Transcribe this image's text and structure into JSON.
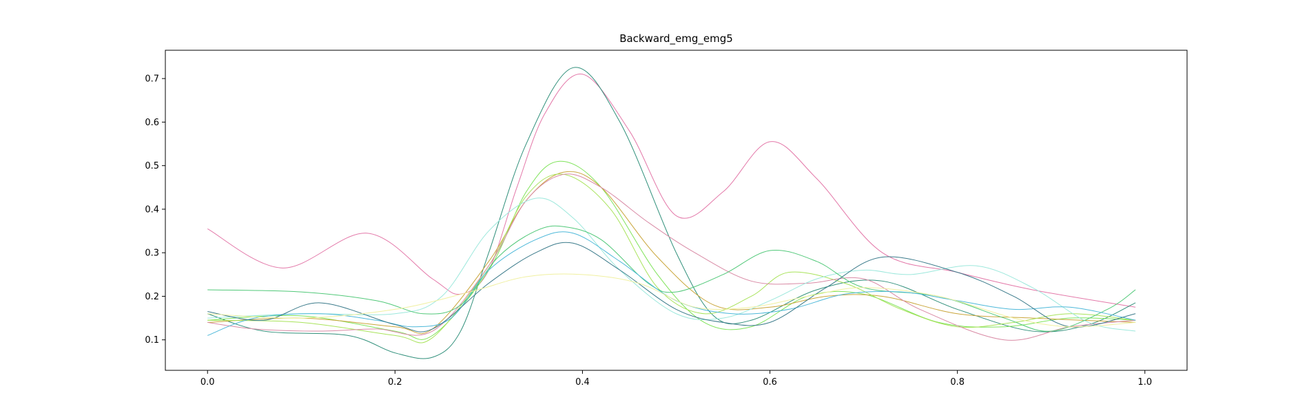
{
  "chart_data": {
    "type": "line",
    "title": "Backward_emg_emg5",
    "xlabel": "",
    "ylabel": "",
    "xlim": [
      -0.045,
      1.045
    ],
    "ylim": [
      0.03,
      0.765
    ],
    "x_ticks": [
      0.0,
      0.2,
      0.4,
      0.6,
      0.8,
      1.0
    ],
    "x_tick_labels": [
      "0.0",
      "0.2",
      "0.4",
      "0.6",
      "0.8",
      "1.0"
    ],
    "y_ticks": [
      0.1,
      0.2,
      0.3,
      0.4,
      0.5,
      0.6,
      0.7
    ],
    "y_tick_labels": [
      "0.1",
      "0.2",
      "0.3",
      "0.4",
      "0.5",
      "0.6",
      "0.7"
    ],
    "grid": false,
    "legend": "none",
    "series": [
      {
        "color": "#e377a8",
        "points": [
          [
            0.0,
            0.355
          ],
          [
            0.08,
            0.265
          ],
          [
            0.17,
            0.345
          ],
          [
            0.24,
            0.24
          ],
          [
            0.27,
            0.205
          ],
          [
            0.3,
            0.26
          ],
          [
            0.33,
            0.45
          ],
          [
            0.36,
            0.62
          ],
          [
            0.4,
            0.71
          ],
          [
            0.45,
            0.58
          ],
          [
            0.5,
            0.385
          ],
          [
            0.55,
            0.44
          ],
          [
            0.6,
            0.555
          ],
          [
            0.65,
            0.47
          ],
          [
            0.72,
            0.3
          ],
          [
            0.8,
            0.255
          ],
          [
            0.88,
            0.215
          ],
          [
            0.99,
            0.175
          ]
        ]
      },
      {
        "color": "#2f8f7a",
        "points": [
          [
            0.0,
            0.16
          ],
          [
            0.06,
            0.12
          ],
          [
            0.15,
            0.11
          ],
          [
            0.2,
            0.07
          ],
          [
            0.24,
            0.06
          ],
          [
            0.27,
            0.12
          ],
          [
            0.3,
            0.3
          ],
          [
            0.34,
            0.55
          ],
          [
            0.39,
            0.725
          ],
          [
            0.44,
            0.6
          ],
          [
            0.5,
            0.3
          ],
          [
            0.54,
            0.155
          ],
          [
            0.58,
            0.145
          ],
          [
            0.65,
            0.215
          ],
          [
            0.72,
            0.235
          ],
          [
            0.8,
            0.17
          ],
          [
            0.88,
            0.12
          ],
          [
            0.94,
            0.135
          ],
          [
            0.99,
            0.185
          ]
        ]
      },
      {
        "color": "#7fe35a",
        "points": [
          [
            0.0,
            0.145
          ],
          [
            0.1,
            0.155
          ],
          [
            0.2,
            0.12
          ],
          [
            0.24,
            0.11
          ],
          [
            0.3,
            0.26
          ],
          [
            0.34,
            0.44
          ],
          [
            0.375,
            0.51
          ],
          [
            0.42,
            0.45
          ],
          [
            0.48,
            0.25
          ],
          [
            0.53,
            0.14
          ],
          [
            0.58,
            0.13
          ],
          [
            0.64,
            0.2
          ],
          [
            0.7,
            0.205
          ],
          [
            0.78,
            0.14
          ],
          [
            0.85,
            0.13
          ],
          [
            0.92,
            0.15
          ],
          [
            0.99,
            0.145
          ]
        ]
      },
      {
        "color": "#c9a53a",
        "points": [
          [
            0.0,
            0.14
          ],
          [
            0.1,
            0.15
          ],
          [
            0.2,
            0.13
          ],
          [
            0.24,
            0.125
          ],
          [
            0.3,
            0.28
          ],
          [
            0.34,
            0.42
          ],
          [
            0.38,
            0.485
          ],
          [
            0.42,
            0.45
          ],
          [
            0.48,
            0.29
          ],
          [
            0.54,
            0.18
          ],
          [
            0.6,
            0.175
          ],
          [
            0.66,
            0.2
          ],
          [
            0.72,
            0.2
          ],
          [
            0.8,
            0.16
          ],
          [
            0.88,
            0.15
          ],
          [
            0.99,
            0.14
          ]
        ]
      },
      {
        "color": "#a8e35a",
        "points": [
          [
            0.0,
            0.145
          ],
          [
            0.1,
            0.14
          ],
          [
            0.2,
            0.11
          ],
          [
            0.24,
            0.105
          ],
          [
            0.3,
            0.27
          ],
          [
            0.34,
            0.43
          ],
          [
            0.38,
            0.48
          ],
          [
            0.43,
            0.4
          ],
          [
            0.48,
            0.22
          ],
          [
            0.53,
            0.16
          ],
          [
            0.58,
            0.2
          ],
          [
            0.62,
            0.255
          ],
          [
            0.68,
            0.23
          ],
          [
            0.74,
            0.17
          ],
          [
            0.8,
            0.13
          ],
          [
            0.86,
            0.14
          ],
          [
            0.92,
            0.16
          ],
          [
            0.99,
            0.145
          ]
        ]
      },
      {
        "color": "#d98aa5",
        "points": [
          [
            0.0,
            0.14
          ],
          [
            0.05,
            0.125
          ],
          [
            0.12,
            0.12
          ],
          [
            0.18,
            0.125
          ],
          [
            0.24,
            0.12
          ],
          [
            0.3,
            0.27
          ],
          [
            0.34,
            0.42
          ],
          [
            0.38,
            0.48
          ],
          [
            0.42,
            0.45
          ],
          [
            0.47,
            0.37
          ],
          [
            0.52,
            0.3
          ],
          [
            0.58,
            0.235
          ],
          [
            0.64,
            0.23
          ],
          [
            0.7,
            0.24
          ],
          [
            0.76,
            0.17
          ],
          [
            0.85,
            0.1
          ],
          [
            0.92,
            0.13
          ],
          [
            0.99,
            0.145
          ]
        ]
      },
      {
        "color": "#9ce8dc",
        "points": [
          [
            0.0,
            0.15
          ],
          [
            0.1,
            0.16
          ],
          [
            0.2,
            0.16
          ],
          [
            0.25,
            0.2
          ],
          [
            0.3,
            0.35
          ],
          [
            0.35,
            0.425
          ],
          [
            0.39,
            0.38
          ],
          [
            0.44,
            0.26
          ],
          [
            0.5,
            0.16
          ],
          [
            0.55,
            0.15
          ],
          [
            0.6,
            0.19
          ],
          [
            0.65,
            0.24
          ],
          [
            0.7,
            0.26
          ],
          [
            0.75,
            0.25
          ],
          [
            0.82,
            0.27
          ],
          [
            0.88,
            0.22
          ],
          [
            0.94,
            0.14
          ],
          [
            0.99,
            0.12
          ]
        ]
      },
      {
        "color": "#50c878",
        "points": [
          [
            0.0,
            0.215
          ],
          [
            0.1,
            0.21
          ],
          [
            0.18,
            0.19
          ],
          [
            0.23,
            0.16
          ],
          [
            0.27,
            0.18
          ],
          [
            0.31,
            0.29
          ],
          [
            0.35,
            0.35
          ],
          [
            0.38,
            0.36
          ],
          [
            0.42,
            0.33
          ],
          [
            0.47,
            0.23
          ],
          [
            0.5,
            0.21
          ],
          [
            0.55,
            0.25
          ],
          [
            0.6,
            0.305
          ],
          [
            0.65,
            0.28
          ],
          [
            0.7,
            0.22
          ],
          [
            0.78,
            0.2
          ],
          [
            0.85,
            0.15
          ],
          [
            0.9,
            0.12
          ],
          [
            0.96,
            0.17
          ],
          [
            0.99,
            0.215
          ]
        ]
      },
      {
        "color": "#4db8d9",
        "points": [
          [
            0.0,
            0.11
          ],
          [
            0.05,
            0.15
          ],
          [
            0.12,
            0.16
          ],
          [
            0.18,
            0.145
          ],
          [
            0.22,
            0.13
          ],
          [
            0.26,
            0.15
          ],
          [
            0.3,
            0.26
          ],
          [
            0.35,
            0.33
          ],
          [
            0.39,
            0.345
          ],
          [
            0.44,
            0.28
          ],
          [
            0.5,
            0.19
          ],
          [
            0.56,
            0.16
          ],
          [
            0.62,
            0.17
          ],
          [
            0.68,
            0.205
          ],
          [
            0.74,
            0.21
          ],
          [
            0.8,
            0.19
          ],
          [
            0.86,
            0.17
          ],
          [
            0.92,
            0.175
          ],
          [
            0.99,
            0.145
          ]
        ]
      },
      {
        "color": "#3a7a8a",
        "points": [
          [
            0.0,
            0.165
          ],
          [
            0.06,
            0.145
          ],
          [
            0.12,
            0.185
          ],
          [
            0.2,
            0.135
          ],
          [
            0.24,
            0.125
          ],
          [
            0.3,
            0.23
          ],
          [
            0.35,
            0.3
          ],
          [
            0.39,
            0.322
          ],
          [
            0.44,
            0.26
          ],
          [
            0.5,
            0.17
          ],
          [
            0.55,
            0.14
          ],
          [
            0.6,
            0.14
          ],
          [
            0.66,
            0.22
          ],
          [
            0.72,
            0.29
          ],
          [
            0.8,
            0.255
          ],
          [
            0.86,
            0.2
          ],
          [
            0.92,
            0.13
          ],
          [
            0.99,
            0.16
          ]
        ]
      },
      {
        "color": "#f0f0a0",
        "points": [
          [
            0.0,
            0.16
          ],
          [
            0.1,
            0.15
          ],
          [
            0.2,
            0.17
          ],
          [
            0.28,
            0.21
          ],
          [
            0.34,
            0.245
          ],
          [
            0.4,
            0.25
          ],
          [
            0.46,
            0.23
          ],
          [
            0.52,
            0.175
          ],
          [
            0.58,
            0.175
          ],
          [
            0.64,
            0.2
          ],
          [
            0.7,
            0.22
          ],
          [
            0.78,
            0.2
          ],
          [
            0.86,
            0.15
          ],
          [
            0.92,
            0.13
          ],
          [
            0.99,
            0.14
          ]
        ]
      }
    ]
  }
}
